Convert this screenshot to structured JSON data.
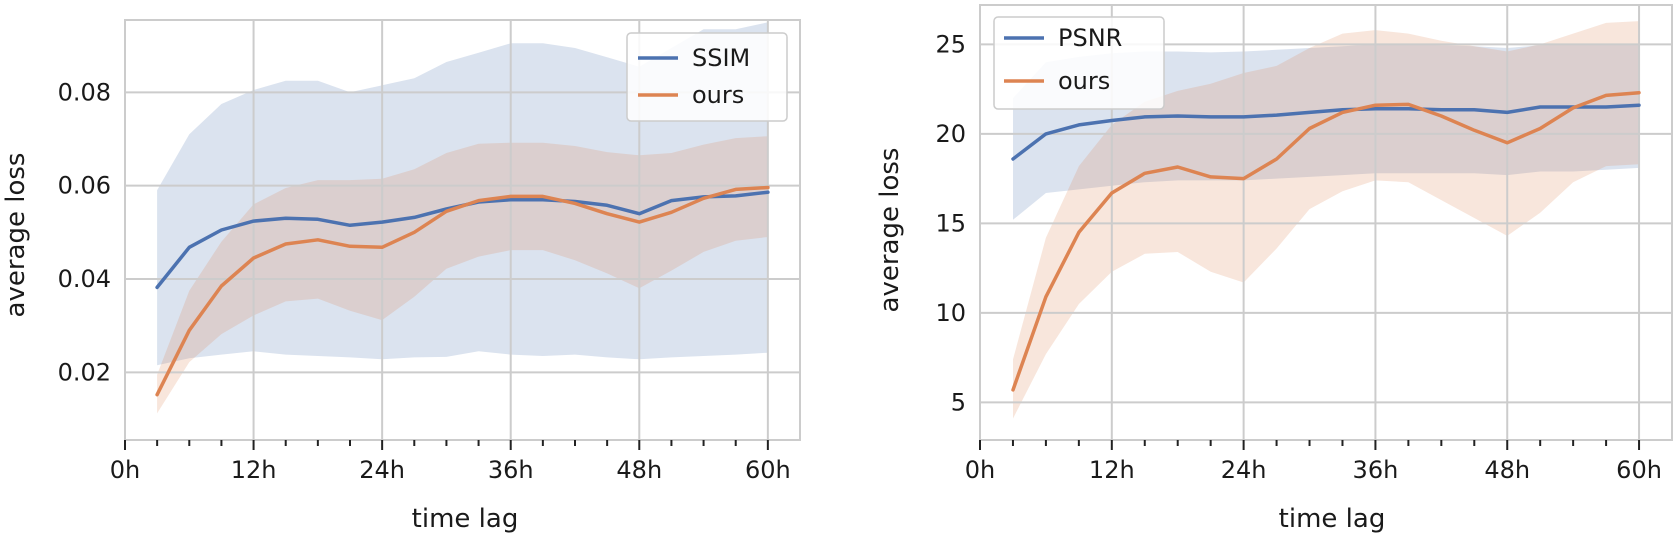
{
  "chart_data": [
    {
      "type": "line",
      "xlabel": "time lag",
      "ylabel": "average loss",
      "x_unit": "hours",
      "xlim": [
        0,
        63
      ],
      "ylim": [
        0.0055,
        0.0955
      ],
      "x_ticks": [
        0,
        12,
        24,
        36,
        48,
        60
      ],
      "x_tick_labels": [
        "0h",
        "12h",
        "24h",
        "36h",
        "48h",
        "60h"
      ],
      "minor_x_ticks": [
        3,
        6,
        9,
        15,
        18,
        21,
        27,
        30,
        33,
        39,
        42,
        45,
        51,
        54,
        57
      ],
      "y_ticks": [
        0.02,
        0.04,
        0.06,
        0.08
      ],
      "y_tick_labels": [
        "0.02",
        "0.04",
        "0.06",
        "0.08"
      ],
      "grid": true,
      "legend_position": "top-right",
      "x": [
        3,
        6,
        9,
        12,
        15,
        18,
        21,
        24,
        27,
        30,
        33,
        36,
        39,
        42,
        45,
        48,
        51,
        54,
        57,
        60
      ],
      "series": [
        {
          "name": "SSIM",
          "color": "#4c72b0",
          "values": [
            0.0382,
            0.0468,
            0.0505,
            0.0524,
            0.053,
            0.0528,
            0.0515,
            0.0522,
            0.0532,
            0.055,
            0.0565,
            0.057,
            0.057,
            0.0566,
            0.0558,
            0.054,
            0.0568,
            0.0576,
            0.0578,
            0.0586
          ],
          "band_upper": [
            0.059,
            0.071,
            0.0775,
            0.0805,
            0.0825,
            0.0825,
            0.08,
            0.0815,
            0.083,
            0.0865,
            0.0885,
            0.0905,
            0.0905,
            0.0895,
            0.0875,
            0.0855,
            0.0895,
            0.0935,
            0.0935,
            0.095
          ],
          "band_lower": [
            0.0215,
            0.023,
            0.0238,
            0.0245,
            0.0238,
            0.0235,
            0.0232,
            0.0228,
            0.0232,
            0.0233,
            0.0245,
            0.0238,
            0.0235,
            0.0238,
            0.0232,
            0.0228,
            0.0232,
            0.0235,
            0.0238,
            0.0242
          ]
        },
        {
          "name": "ours",
          "color": "#dd8452",
          "values": [
            0.0152,
            0.029,
            0.0385,
            0.0445,
            0.0475,
            0.0484,
            0.047,
            0.0468,
            0.05,
            0.0545,
            0.0568,
            0.0577,
            0.0577,
            0.0562,
            0.054,
            0.0522,
            0.0543,
            0.0573,
            0.0592,
            0.0596
          ],
          "band_upper": [
            0.0195,
            0.0375,
            0.048,
            0.056,
            0.0595,
            0.0612,
            0.0612,
            0.0615,
            0.0635,
            0.067,
            0.069,
            0.0692,
            0.0692,
            0.0685,
            0.0672,
            0.0665,
            0.067,
            0.0688,
            0.0702,
            0.0706
          ],
          "band_lower": [
            0.0112,
            0.0222,
            0.0282,
            0.0322,
            0.0352,
            0.0358,
            0.0332,
            0.0312,
            0.0362,
            0.0422,
            0.0448,
            0.0462,
            0.0462,
            0.044,
            0.0412,
            0.038,
            0.0418,
            0.0458,
            0.0482,
            0.049
          ]
        }
      ]
    },
    {
      "type": "line",
      "xlabel": "time lag",
      "ylabel": "average loss",
      "x_unit": "hours",
      "xlim": [
        0,
        63
      ],
      "ylim": [
        2.9,
        27.2
      ],
      "x_ticks": [
        0,
        12,
        24,
        36,
        48,
        60
      ],
      "x_tick_labels": [
        "0h",
        "12h",
        "24h",
        "36h",
        "48h",
        "60h"
      ],
      "minor_x_ticks": [
        3,
        6,
        9,
        15,
        18,
        21,
        27,
        30,
        33,
        39,
        42,
        45,
        51,
        54,
        57
      ],
      "y_ticks": [
        5,
        10,
        15,
        20,
        25
      ],
      "y_tick_labels": [
        "5",
        "10",
        "15",
        "20",
        "25"
      ],
      "grid": true,
      "legend_position": "top-left",
      "x": [
        3,
        6,
        9,
        12,
        15,
        18,
        21,
        24,
        27,
        30,
        33,
        36,
        39,
        42,
        45,
        48,
        51,
        54,
        57,
        60
      ],
      "series": [
        {
          "name": "PSNR",
          "color": "#4c72b0",
          "values": [
            18.6,
            20.0,
            20.5,
            20.75,
            20.95,
            21.0,
            20.95,
            20.95,
            21.05,
            21.2,
            21.35,
            21.4,
            21.4,
            21.35,
            21.35,
            21.2,
            21.5,
            21.5,
            21.5,
            21.6
          ],
          "band_upper": [
            22.0,
            24.0,
            24.3,
            24.5,
            24.6,
            24.6,
            24.55,
            24.6,
            24.7,
            24.8,
            24.9,
            25.0,
            25.0,
            24.95,
            24.9,
            24.8,
            24.95,
            25.0,
            25.0,
            25.05
          ],
          "band_lower": [
            15.2,
            16.7,
            16.9,
            17.1,
            17.3,
            17.4,
            17.4,
            17.4,
            17.5,
            17.6,
            17.7,
            17.8,
            17.8,
            17.8,
            17.8,
            17.7,
            17.9,
            17.9,
            18.0,
            18.1
          ]
        },
        {
          "name": "ours",
          "color": "#dd8452",
          "values": [
            5.7,
            10.9,
            14.5,
            16.7,
            17.8,
            18.15,
            17.6,
            17.5,
            18.6,
            20.3,
            21.2,
            21.6,
            21.65,
            21.0,
            20.2,
            19.5,
            20.3,
            21.45,
            22.15,
            22.3
          ],
          "band_upper": [
            7.4,
            14.2,
            18.2,
            20.5,
            21.8,
            22.4,
            22.8,
            23.4,
            23.8,
            24.8,
            25.6,
            25.8,
            25.6,
            25.2,
            24.9,
            24.6,
            25.0,
            25.6,
            26.2,
            26.3
          ],
          "band_lower": [
            4.1,
            7.7,
            10.5,
            12.3,
            13.3,
            13.4,
            12.3,
            11.7,
            13.6,
            15.8,
            16.8,
            17.4,
            17.3,
            16.3,
            15.3,
            14.3,
            15.6,
            17.3,
            18.2,
            18.3
          ]
        }
      ]
    }
  ]
}
